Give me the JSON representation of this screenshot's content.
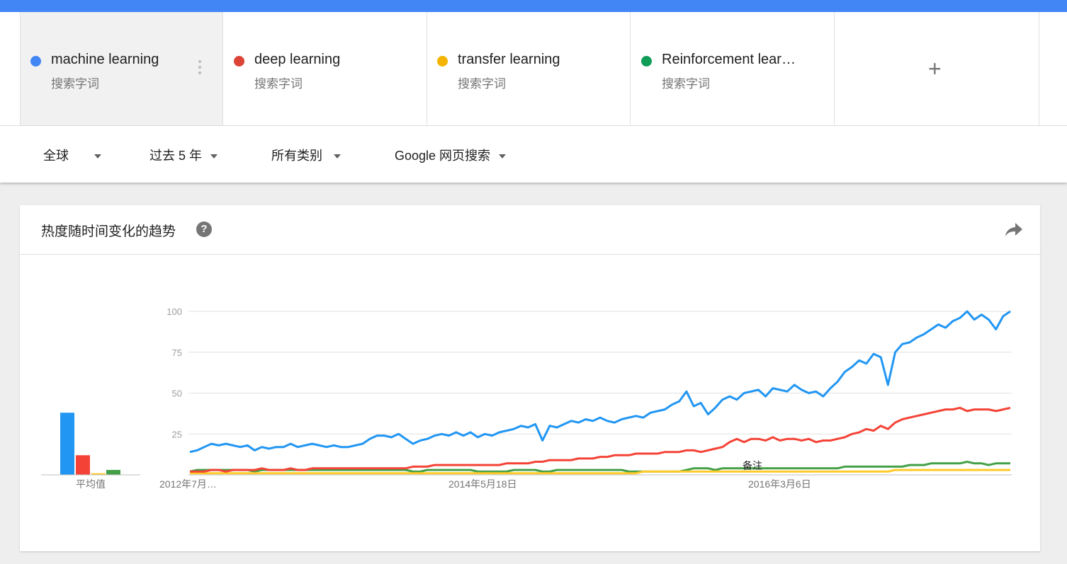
{
  "terms": [
    {
      "name": "machine learning",
      "sub": "搜索字词",
      "color": "#4285f4"
    },
    {
      "name": "deep learning",
      "sub": "搜索字词",
      "color": "#db4437"
    },
    {
      "name": "transfer learning",
      "sub": "搜索字词",
      "color": "#f4b400"
    },
    {
      "name": "Reinforcement lear…",
      "sub": "搜索字词",
      "color": "#0f9d58"
    }
  ],
  "add_label": "+",
  "filters": {
    "region": "全球",
    "time": "过去 5 年",
    "category": "所有类别",
    "property": "Google 网页搜索"
  },
  "card": {
    "title": "热度随时间变化的趋势",
    "help": "?"
  },
  "chart_data": {
    "type": "line",
    "title": "热度随时间变化的趋势",
    "ylim": [
      0,
      100
    ],
    "yticks": [
      100,
      75,
      50,
      25
    ],
    "x_tick_labels": [
      "2012年7月…",
      "2014年5月18日",
      "2016年3月6日"
    ],
    "average_label": "平均值",
    "annotation": "备注",
    "grid": true,
    "averages": [
      {
        "name": "machine learning",
        "value": 38
      },
      {
        "name": "deep learning",
        "value": 12
      },
      {
        "name": "transfer learning",
        "value": 1
      },
      {
        "name": "Reinforcement learning",
        "value": 3
      }
    ],
    "series": [
      {
        "name": "machine learning",
        "color": "#2196f3",
        "values": [
          14,
          15,
          17,
          19,
          18,
          19,
          18,
          17,
          18,
          15,
          17,
          16,
          17,
          17,
          19,
          17,
          18,
          19,
          18,
          17,
          18,
          17,
          17,
          18,
          19,
          22,
          24,
          24,
          23,
          25,
          22,
          19,
          21,
          22,
          24,
          25,
          24,
          26,
          24,
          26,
          23,
          25,
          24,
          26,
          27,
          28,
          30,
          29,
          31,
          21,
          30,
          29,
          31,
          33,
          32,
          34,
          33,
          35,
          33,
          32,
          34,
          35,
          36,
          35,
          38,
          39,
          40,
          43,
          45,
          51,
          42,
          44,
          37,
          41,
          46,
          48,
          46,
          50,
          51,
          52,
          48,
          53,
          52,
          51,
          55,
          52,
          50,
          51,
          48,
          53,
          57,
          63,
          66,
          70,
          68,
          74,
          72,
          55,
          75,
          80,
          81,
          84,
          86,
          89,
          92,
          90,
          94,
          96,
          100,
          95,
          98,
          95,
          89,
          97,
          100
        ]
      },
      {
        "name": "deep learning",
        "color": "#f44336",
        "values": [
          2,
          2,
          2,
          3,
          3,
          2,
          3,
          3,
          3,
          3,
          4,
          3,
          3,
          3,
          4,
          3,
          3,
          4,
          4,
          4,
          4,
          4,
          4,
          4,
          4,
          4,
          4,
          4,
          4,
          4,
          4,
          5,
          5,
          5,
          6,
          6,
          6,
          6,
          6,
          6,
          6,
          6,
          6,
          6,
          7,
          7,
          7,
          7,
          8,
          8,
          9,
          9,
          9,
          9,
          10,
          10,
          10,
          11,
          11,
          12,
          12,
          12,
          13,
          13,
          13,
          13,
          14,
          14,
          14,
          15,
          15,
          14,
          15,
          16,
          17,
          20,
          22,
          20,
          22,
          22,
          21,
          23,
          21,
          22,
          22,
          21,
          22,
          20,
          21,
          21,
          22,
          23,
          25,
          26,
          28,
          27,
          30,
          28,
          32,
          34,
          35,
          36,
          37,
          38,
          39,
          40,
          40,
          41,
          39,
          40,
          40,
          40,
          39,
          40,
          41
        ]
      },
      {
        "name": "transfer learning",
        "color": "#ffca28",
        "values": [
          1,
          1,
          1,
          1,
          1,
          1,
          1,
          1,
          1,
          1,
          1,
          1,
          1,
          1,
          1,
          1,
          1,
          1,
          1,
          1,
          1,
          1,
          1,
          1,
          1,
          1,
          1,
          1,
          1,
          1,
          1,
          1,
          1,
          1,
          1,
          1,
          1,
          1,
          1,
          1,
          1,
          1,
          1,
          1,
          1,
          1,
          1,
          1,
          1,
          1,
          1,
          1,
          1,
          1,
          1,
          1,
          1,
          1,
          1,
          1,
          1,
          1,
          1,
          2,
          2,
          2,
          2,
          2,
          2,
          2,
          2,
          2,
          2,
          2,
          2,
          2,
          2,
          2,
          2,
          2,
          2,
          2,
          2,
          2,
          2,
          2,
          2,
          2,
          2,
          2,
          2,
          2,
          2,
          2,
          2,
          2,
          2,
          2,
          3,
          3,
          3,
          3,
          3,
          3,
          3,
          3,
          3,
          3,
          3,
          3,
          3,
          3,
          3,
          3,
          3
        ]
      },
      {
        "name": "Reinforcement learning",
        "color": "#43a047",
        "values": [
          2,
          3,
          3,
          3,
          3,
          3,
          3,
          3,
          3,
          2,
          3,
          3,
          3,
          3,
          3,
          3,
          3,
          3,
          3,
          3,
          3,
          3,
          3,
          3,
          3,
          3,
          3,
          3,
          3,
          3,
          3,
          2,
          2,
          3,
          3,
          3,
          3,
          3,
          3,
          3,
          2,
          2,
          2,
          2,
          2,
          3,
          3,
          3,
          3,
          2,
          2,
          3,
          3,
          3,
          3,
          3,
          3,
          3,
          3,
          3,
          3,
          2,
          2,
          2,
          2,
          2,
          2,
          2,
          2,
          3,
          4,
          4,
          4,
          3,
          4,
          4,
          4,
          4,
          4,
          4,
          4,
          4,
          4,
          4,
          4,
          4,
          4,
          4,
          4,
          4,
          4,
          5,
          5,
          5,
          5,
          5,
          5,
          5,
          5,
          5,
          6,
          6,
          6,
          7,
          7,
          7,
          7,
          7,
          8,
          7,
          7,
          6,
          7,
          7,
          7
        ]
      }
    ]
  }
}
